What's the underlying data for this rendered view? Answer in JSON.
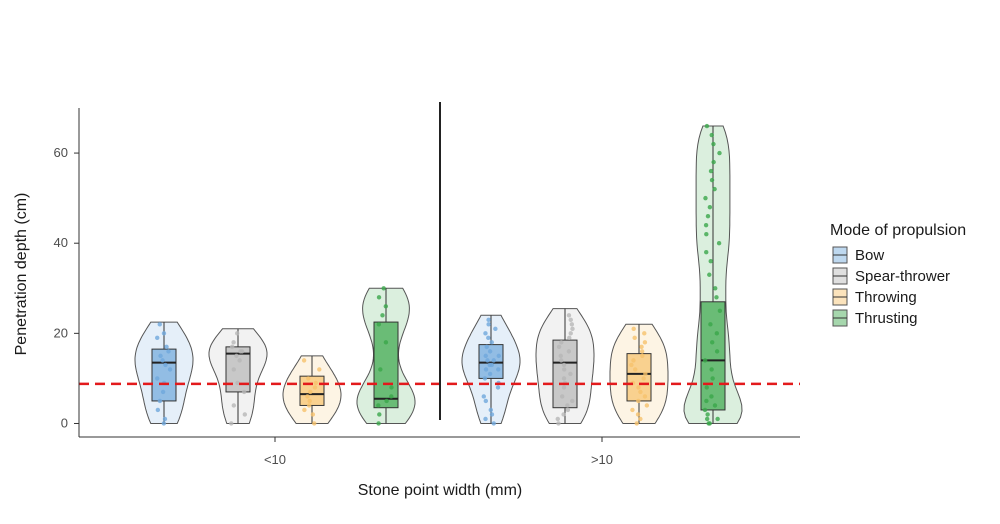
{
  "chart_data": {
    "type": "violin",
    "xlabel": "Stone point width (mm)",
    "ylabel": "Penetration depth (cm)",
    "ylim": [
      -3,
      70
    ],
    "yticks": [
      0,
      20,
      40,
      60
    ],
    "categories": [
      "<10",
      ">10"
    ],
    "grid": false,
    "legend": {
      "title": "Mode of propulsion",
      "position": "right",
      "entries": [
        "Bow",
        "Spear-thrower",
        "Throwing",
        "Thrusting"
      ]
    },
    "reference_line": {
      "y": 8.8,
      "style": "dashed",
      "color": "#e31a1c"
    },
    "divider": "vertical line between the two groups",
    "colors": {
      "Bow": "#6fa8dc",
      "Spear-thrower": "#b7b7b7",
      "Throwing": "#f6c26b",
      "Thrusting": "#3aa64a"
    },
    "series": [
      {
        "name": "Bow",
        "color": "#6fa8dc",
        "groups": [
          {
            "category": "<10",
            "min": 0,
            "q1": 5,
            "median": 13.5,
            "q3": 16.5,
            "max": 22.5,
            "points": [
              0,
              1,
              3,
              5,
              7,
              9,
              10,
              12,
              13,
              14,
              15,
              16,
              17,
              19,
              20,
              22
            ]
          },
          {
            "category": ">10",
            "min": 0,
            "q1": 10,
            "median": 13.5,
            "q3": 17.5,
            "max": 24,
            "points": [
              0,
              1,
              2,
              3,
              5,
              6,
              8,
              9,
              10,
              11,
              12,
              12,
              13,
              13,
              14,
              14,
              15,
              15,
              16,
              17,
              18,
              19,
              20,
              21,
              22,
              23
            ]
          }
        ]
      },
      {
        "name": "Spear-thrower",
        "color": "#b7b7b7",
        "groups": [
          {
            "category": "<10",
            "min": 0,
            "q1": 7,
            "median": 15.5,
            "q3": 17,
            "max": 21,
            "points": [
              0,
              2,
              4,
              7,
              9,
              12,
              14,
              15,
              16,
              16,
              17,
              18,
              20
            ]
          },
          {
            "category": ">10",
            "min": 0,
            "q1": 3.5,
            "median": 13.5,
            "q3": 18.5,
            "max": 25.5,
            "points": [
              0,
              1,
              2,
              3,
              4,
              5,
              6,
              8,
              9,
              10,
              11,
              12,
              13,
              14,
              15,
              16,
              17,
              18,
              19,
              20,
              21,
              22,
              23,
              24
            ]
          }
        ]
      },
      {
        "name": "Throwing",
        "color": "#f6c26b",
        "groups": [
          {
            "category": "<10",
            "min": 0,
            "q1": 4,
            "median": 6.5,
            "q3": 10.5,
            "max": 15,
            "points": [
              0,
              2,
              3,
              4,
              5,
              6,
              7,
              8,
              9,
              10,
              12,
              14
            ]
          },
          {
            "category": ">10",
            "min": 0,
            "q1": 5,
            "median": 11,
            "q3": 15.5,
            "max": 22,
            "points": [
              0,
              1,
              2,
              3,
              4,
              5,
              6,
              7,
              8,
              9,
              10,
              11,
              12,
              13,
              14,
              15,
              16,
              17,
              18,
              19,
              20,
              21
            ]
          }
        ]
      },
      {
        "name": "Thrusting",
        "color": "#3aa64a",
        "groups": [
          {
            "category": "<10",
            "min": 0,
            "q1": 3.5,
            "median": 5.5,
            "q3": 22.5,
            "max": 30,
            "points": [
              0,
              2,
              4,
              5,
              6,
              8,
              12,
              18,
              22,
              24,
              26,
              28,
              30
            ]
          },
          {
            "category": ">10",
            "min": 0,
            "q1": 3,
            "median": 14,
            "q3": 27,
            "max": 66,
            "points": [
              0,
              0,
              1,
              1,
              2,
              3,
              4,
              5,
              6,
              8,
              10,
              12,
              14,
              16,
              18,
              20,
              22,
              25,
              28,
              30,
              33,
              36,
              38,
              40,
              42,
              44,
              46,
              48,
              50,
              52,
              54,
              56,
              58,
              60,
              62,
              64,
              66
            ]
          }
        ]
      }
    ]
  }
}
